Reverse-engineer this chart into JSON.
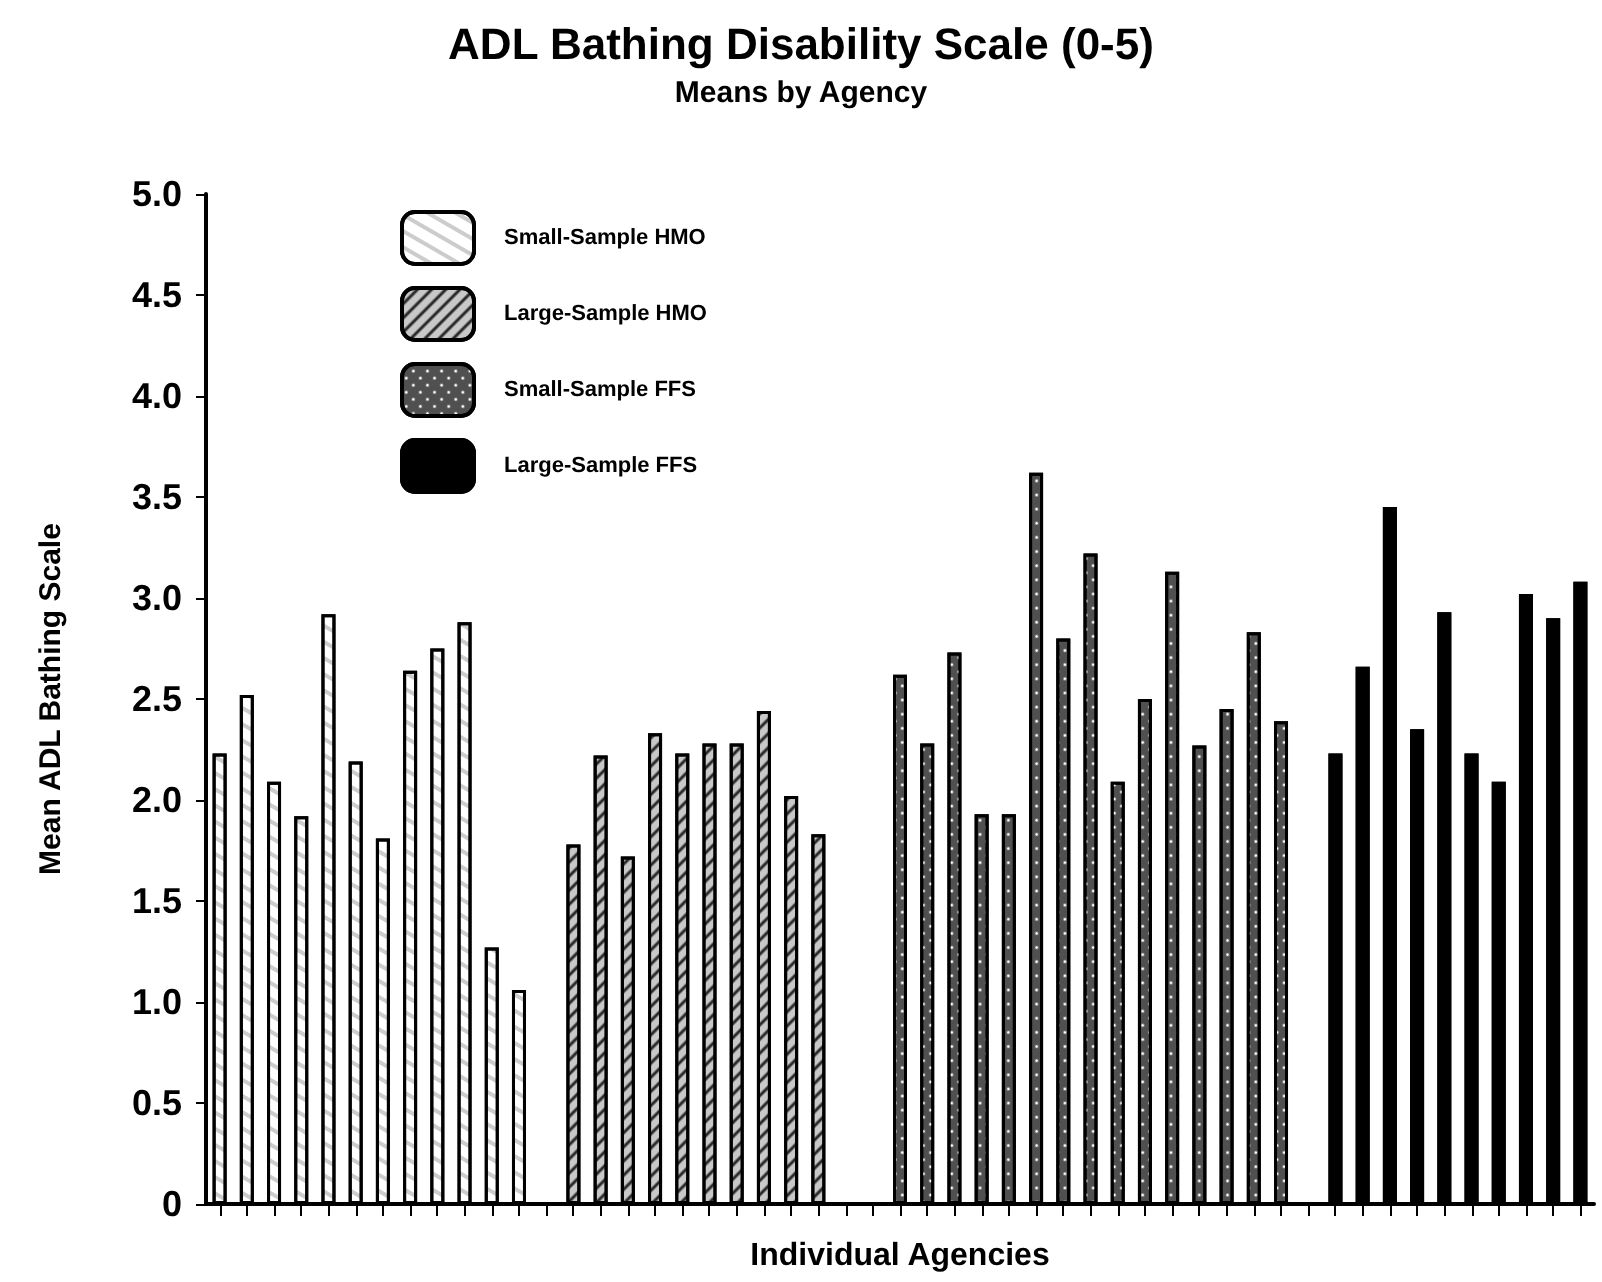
{
  "chart_data": {
    "type": "bar",
    "title": "ADL Bathing Disability Scale (0-5)",
    "subtitle": "Means by Agency",
    "xlabel": "Individual Agencies",
    "ylabel": "Mean ADL Bathing Scale",
    "categories": [
      null,
      null,
      null,
      null,
      null,
      null,
      null,
      null,
      null,
      null,
      null,
      null,
      null,
      null,
      null,
      null,
      null,
      null,
      null,
      null,
      null,
      null,
      null,
      null,
      null,
      null,
      null,
      null,
      null,
      null,
      null,
      null,
      null,
      null,
      null,
      null,
      null,
      null,
      null,
      null,
      null,
      null,
      null,
      null,
      null,
      null,
      null,
      null,
      null,
      null,
      null
    ],
    "series": [
      {
        "name": "Small-Sample HMO",
        "color": "#ffffff",
        "values": [
          2.23,
          2.52,
          2.09,
          1.92,
          2.92,
          2.19,
          1.81,
          2.64,
          2.75,
          2.88,
          1.27,
          1.06,
          null,
          null,
          null,
          null,
          null,
          null,
          null,
          null,
          null,
          null,
          null,
          null,
          null,
          null,
          null,
          null,
          null,
          null,
          null,
          null,
          null,
          null,
          null,
          null,
          null,
          null,
          null,
          null,
          null,
          null,
          null,
          null,
          null,
          null,
          null,
          null,
          null,
          null,
          null
        ]
      },
      {
        "name": "Large-Sample HMO",
        "color": "#c8c8c8",
        "values": [
          null,
          null,
          null,
          null,
          null,
          null,
          null,
          null,
          null,
          null,
          null,
          null,
          null,
          1.78,
          2.22,
          1.72,
          2.33,
          2.23,
          2.28,
          2.28,
          2.44,
          2.02,
          1.83,
          null,
          null,
          null,
          null,
          null,
          null,
          null,
          null,
          null,
          null,
          null,
          null,
          null,
          null,
          null,
          null,
          null,
          null,
          null,
          null,
          null,
          null,
          null,
          null,
          null,
          null,
          null,
          null
        ]
      },
      {
        "name": "Small-Sample FFS",
        "color": "#505050",
        "values": [
          null,
          null,
          null,
          null,
          null,
          null,
          null,
          null,
          null,
          null,
          null,
          null,
          null,
          null,
          null,
          null,
          null,
          null,
          null,
          null,
          null,
          null,
          null,
          null,
          null,
          2.62,
          2.28,
          2.73,
          1.93,
          1.93,
          3.62,
          2.8,
          3.22,
          2.09,
          2.5,
          3.13,
          2.27,
          2.45,
          2.83,
          2.39,
          null,
          null,
          null,
          null,
          null,
          null,
          null,
          null,
          null,
          null,
          null
        ]
      },
      {
        "name": "Large-Sample FFS",
        "color": "#000000",
        "values": [
          null,
          null,
          null,
          null,
          null,
          null,
          null,
          null,
          null,
          null,
          null,
          null,
          null,
          null,
          null,
          null,
          null,
          null,
          null,
          null,
          null,
          null,
          null,
          null,
          null,
          null,
          null,
          null,
          null,
          null,
          null,
          null,
          null,
          null,
          null,
          null,
          null,
          null,
          null,
          null,
          null,
          2.23,
          2.66,
          3.45,
          2.35,
          2.93,
          2.23,
          2.09,
          3.02,
          2.9,
          3.08
        ]
      }
    ],
    "ylim": [
      0,
      5
    ],
    "yticks": [
      {
        "value": 0,
        "label": "0"
      },
      {
        "value": 0.5,
        "label": "0.5"
      },
      {
        "value": 1,
        "label": "1.0"
      },
      {
        "value": 1.5,
        "label": "1.5"
      },
      {
        "value": 2,
        "label": "2.0"
      },
      {
        "value": 2.5,
        "label": "2.5"
      },
      {
        "value": 3,
        "label": "3.0"
      },
      {
        "value": 3.5,
        "label": "3.5"
      },
      {
        "value": 4,
        "label": "4.0"
      },
      {
        "value": 4.5,
        "label": "4.5"
      },
      {
        "value": 5,
        "label": "5.0"
      }
    ],
    "grid": false,
    "legend": "top left",
    "tick_labels": "y"
  }
}
